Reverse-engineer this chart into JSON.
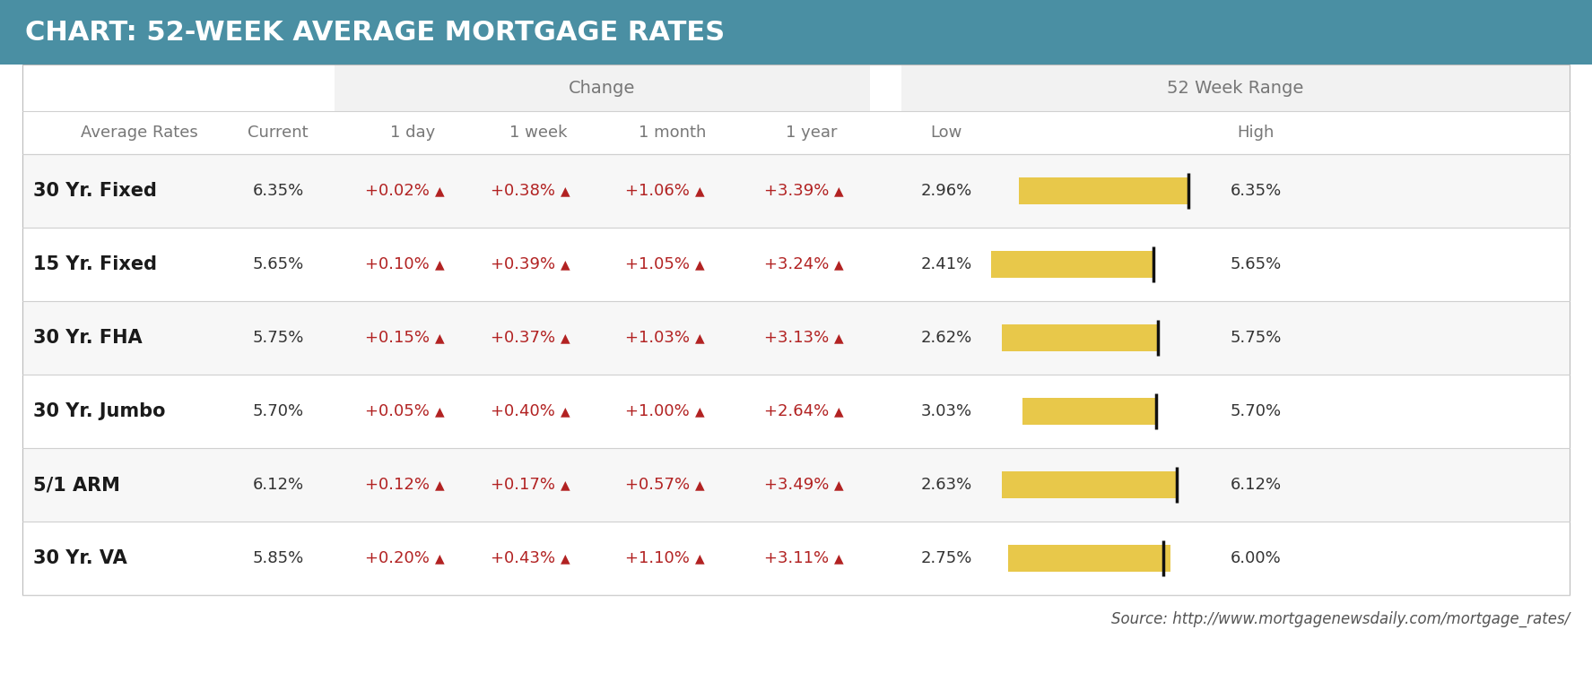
{
  "title": "CHART: 52-WEEK AVERAGE MORTGAGE RATES",
  "title_bg": "#4a8fa3",
  "title_color": "#ffffff",
  "table_bg": "#ffffff",
  "group_header_bg": "#f2f2f2",
  "row_bg_odd": "#f7f7f7",
  "row_bg_even": "#ffffff",
  "separator_color": "#d0d0d0",
  "rows": [
    {
      "name": "30 Yr. Fixed",
      "current": "6.35%",
      "day": "+0.02%",
      "week": "+0.38%",
      "month": "+1.06%",
      "year": "+3.39%",
      "low": "2.96%",
      "high": "6.35%",
      "low_val": 2.96,
      "high_val": 6.35,
      "current_val": 6.35
    },
    {
      "name": "15 Yr. Fixed",
      "current": "5.65%",
      "day": "+0.10%",
      "week": "+0.39%",
      "month": "+1.05%",
      "year": "+3.24%",
      "low": "2.41%",
      "high": "5.65%",
      "low_val": 2.41,
      "high_val": 5.65,
      "current_val": 5.65
    },
    {
      "name": "30 Yr. FHA",
      "current": "5.75%",
      "day": "+0.15%",
      "week": "+0.37%",
      "month": "+1.03%",
      "year": "+3.13%",
      "low": "2.62%",
      "high": "5.75%",
      "low_val": 2.62,
      "high_val": 5.75,
      "current_val": 5.75
    },
    {
      "name": "30 Yr. Jumbo",
      "current": "5.70%",
      "day": "+0.05%",
      "week": "+0.40%",
      "month": "+1.00%",
      "year": "+2.64%",
      "low": "3.03%",
      "high": "5.70%",
      "low_val": 3.03,
      "high_val": 5.7,
      "current_val": 5.7
    },
    {
      "name": "5/1 ARM",
      "current": "6.12%",
      "day": "+0.12%",
      "week": "+0.17%",
      "month": "+0.57%",
      "year": "+3.49%",
      "low": "2.63%",
      "high": "6.12%",
      "low_val": 2.63,
      "high_val": 6.12,
      "current_val": 6.12
    },
    {
      "name": "30 Yr. VA",
      "current": "5.85%",
      "day": "+0.20%",
      "week": "+0.43%",
      "month": "+1.10%",
      "year": "+3.11%",
      "low": "2.75%",
      "high": "6.00%",
      "low_val": 2.75,
      "high_val": 6.0,
      "current_val": 5.85
    }
  ],
  "source_text": "Source: http://www.mortgagenewsdaily.com/mortgage_rates/",
  "bar_color": "#e8c84a",
  "arrow_color": "#b22222",
  "change_color": "#b22222",
  "text_dark": "#333333",
  "text_header": "#777777"
}
